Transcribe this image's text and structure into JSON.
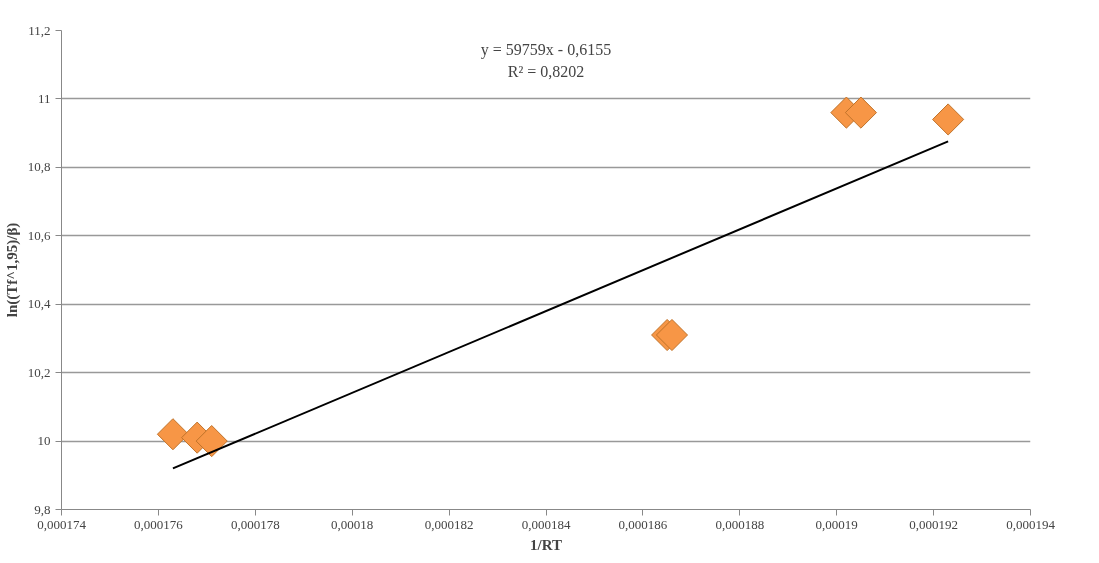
{
  "chart_data": {
    "type": "scatter",
    "xlabel": "1/RT",
    "ylabel": "ln((Tf^1,95)/β)",
    "annotations": [
      "y = 59759x - 0,6155",
      "R² = 0,8202"
    ],
    "series": [
      {
        "color": "#f79646",
        "marker": "diamond",
        "x": [
          0.0001763,
          0.0001768,
          0.0001771,
          0.0001865,
          0.0001866,
          0.0001902,
          0.0001905,
          0.0001923
        ],
        "values": [
          10.02,
          10.01,
          10.0,
          10.31,
          10.31,
          10.96,
          10.96,
          10.94
        ]
      },
      {
        "type": "line",
        "color": "#000000",
        "x": [
          0.0001763,
          0.0001923
        ],
        "values": [
          9.92,
          10.876
        ]
      }
    ],
    "xlim": [
      0.000174,
      0.000194
    ],
    "xticks": [
      {
        "value": 0.000174,
        "label": "0,000174"
      },
      {
        "value": 0.000176,
        "label": "0,000176"
      },
      {
        "value": 0.000178,
        "label": "0,000178"
      },
      {
        "value": 0.00018,
        "label": "0,00018"
      },
      {
        "value": 0.000182,
        "label": "0,000182"
      },
      {
        "value": 0.000184,
        "label": "0,000184"
      },
      {
        "value": 0.000186,
        "label": "0,000186"
      },
      {
        "value": 0.000188,
        "label": "0,000188"
      },
      {
        "value": 0.00019,
        "label": "0,00019"
      },
      {
        "value": 0.000192,
        "label": "0,000192"
      },
      {
        "value": 0.000194,
        "label": "0,000194"
      }
    ],
    "ylim": [
      9.8,
      11.2
    ],
    "yticks": [
      {
        "value": 9.8,
        "label": "9,8"
      },
      10,
      {
        "value": 10.2,
        "label": "10,2"
      },
      {
        "value": 10.4,
        "label": "10,4"
      },
      {
        "value": 10.6,
        "label": "10,6"
      },
      {
        "value": 10.8,
        "label": "10,8"
      },
      11,
      {
        "value": 11.2,
        "label": "11,2"
      }
    ],
    "grid": "y"
  }
}
